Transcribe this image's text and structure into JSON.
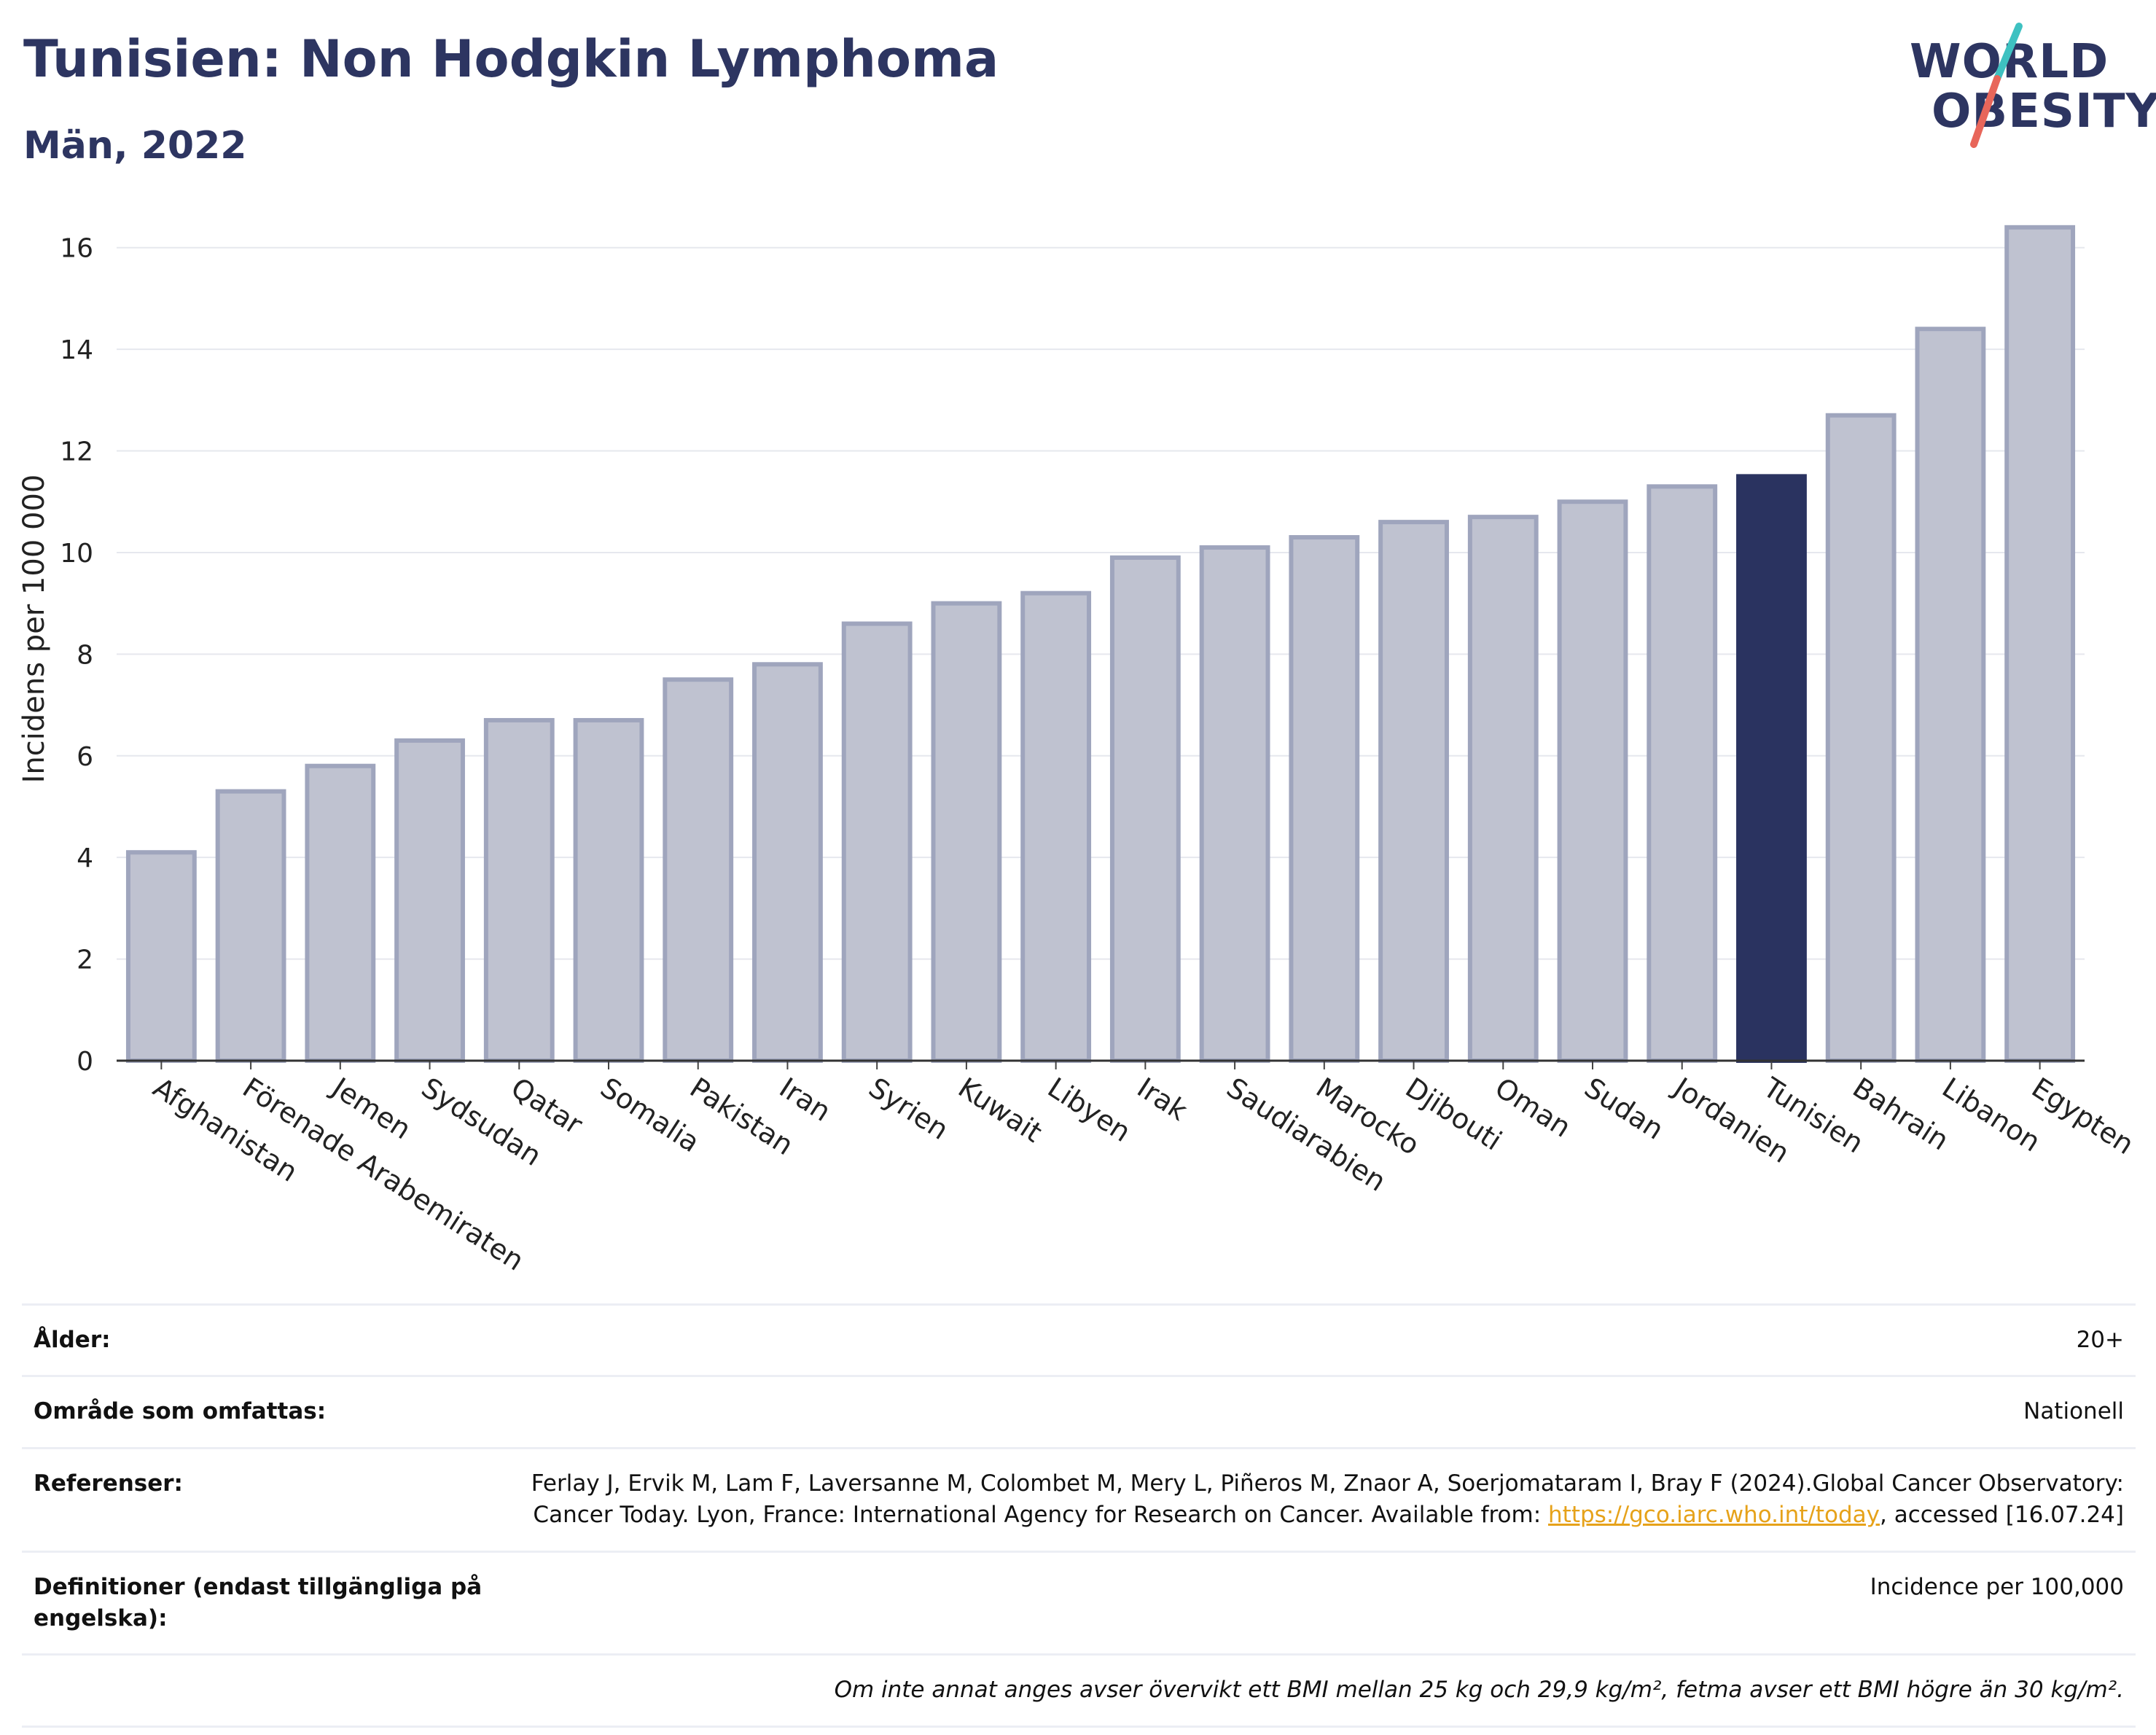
{
  "title": "Tunisien: Non Hodgkin Lymphoma",
  "subtitle": "Män, 2022",
  "logo": {
    "line1": "WORLD",
    "line2": "OBESITY",
    "slash_colors": [
      "#3ec1c1",
      "#e8665a"
    ]
  },
  "colors": {
    "bar": "#bfc2d0",
    "bar_border": "#9fa5bd",
    "highlight": "#2a3360",
    "title": "#2d3561",
    "grid": "#e6e8ee"
  },
  "chart_data": {
    "type": "bar",
    "title": "Tunisien: Non Hodgkin Lymphoma",
    "subtitle": "Män, 2022",
    "xlabel": "",
    "ylabel": "Incidens per 100 000",
    "ylim": [
      0,
      17
    ],
    "yticks": [
      0,
      2,
      4,
      6,
      8,
      10,
      12,
      14,
      16
    ],
    "grid": true,
    "highlight": "Tunisien",
    "categories": [
      "Afghanistan",
      "Förenade Arabemiraten",
      "Jemen",
      "Sydsudan",
      "Qatar",
      "Somalia",
      "Pakistan",
      "Iran",
      "Syrien",
      "Kuwait",
      "Libyen",
      "Irak",
      "Saudiarabien",
      "Marocko",
      "Djibouti",
      "Oman",
      "Sudan",
      "Jordanien",
      "Tunisien",
      "Bahrain",
      "Libanon",
      "Egypten"
    ],
    "values": [
      4.1,
      5.3,
      5.8,
      6.3,
      6.7,
      6.7,
      7.5,
      7.8,
      8.6,
      9.0,
      9.2,
      9.9,
      10.1,
      10.3,
      10.6,
      10.7,
      11.0,
      11.3,
      11.5,
      12.7,
      14.4,
      16.4
    ]
  },
  "info": {
    "age_label": "Ålder:",
    "age_value": "20+",
    "area_label": "Område som omfattas:",
    "area_value": "Nationell",
    "ref_label": "Referenser:",
    "ref_text": "Ferlay J, Ervik M, Lam F, Laversanne M, Colombet M, Mery L, Piñeros M, Znaor A, Soerjomataram I, Bray F (2024).Global Cancer Observatory: Cancer Today. Lyon, France: International Agency for Research on Cancer. Available from: ",
    "ref_link": "https://gco.iarc.who.int/today",
    "ref_suffix": ", accessed [16.07.24]",
    "def_label": "Definitioner (endast tillgängliga på engelska):",
    "def_value": "Incidence per 100,000",
    "note": "Om inte annat anges avser övervikt ett BMI mellan 25 kg och 29,9 kg/m², fetma avser ett BMI högre än 30 kg/m²."
  }
}
